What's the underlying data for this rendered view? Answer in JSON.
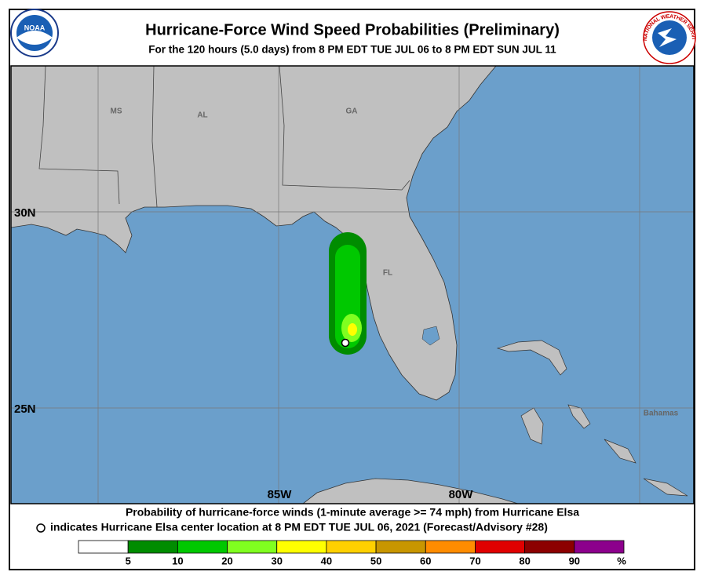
{
  "header": {
    "title": "Hurricane-Force Wind Speed Probabilities (Preliminary)",
    "subtitle": "For the 120 hours (5.0 days) from 8 PM EDT TUE JUL 06 to 8 PM EDT SUN JUL 11",
    "noaa_logo": "NOAA",
    "nws_logo": "NATIONAL WEATHER SERVICE"
  },
  "map": {
    "region_labels": [
      "MS",
      "AL",
      "GA",
      "FL",
      "Bahamas"
    ],
    "lat_labels": [
      "30N",
      "25N"
    ],
    "lon_labels": [
      "85W",
      "80W"
    ]
  },
  "footer": {
    "line1": "Probability of hurricane-force winds (1-minute average >= 74 mph) from Hurricane Elsa",
    "line2": "indicates Hurricane Elsa center location at 8 PM EDT TUE JUL 06, 2021 (Forecast/Advisory #28)"
  },
  "legend": {
    "colors": [
      "#ffffff",
      "#008c00",
      "#00c800",
      "#80ff20",
      "#ffff00",
      "#ffd000",
      "#c89600",
      "#ff8c00",
      "#e00000",
      "#8c0000",
      "#8c008c"
    ],
    "ticks": [
      5,
      10,
      20,
      30,
      40,
      50,
      60,
      70,
      80,
      90
    ],
    "unit": "%"
  }
}
